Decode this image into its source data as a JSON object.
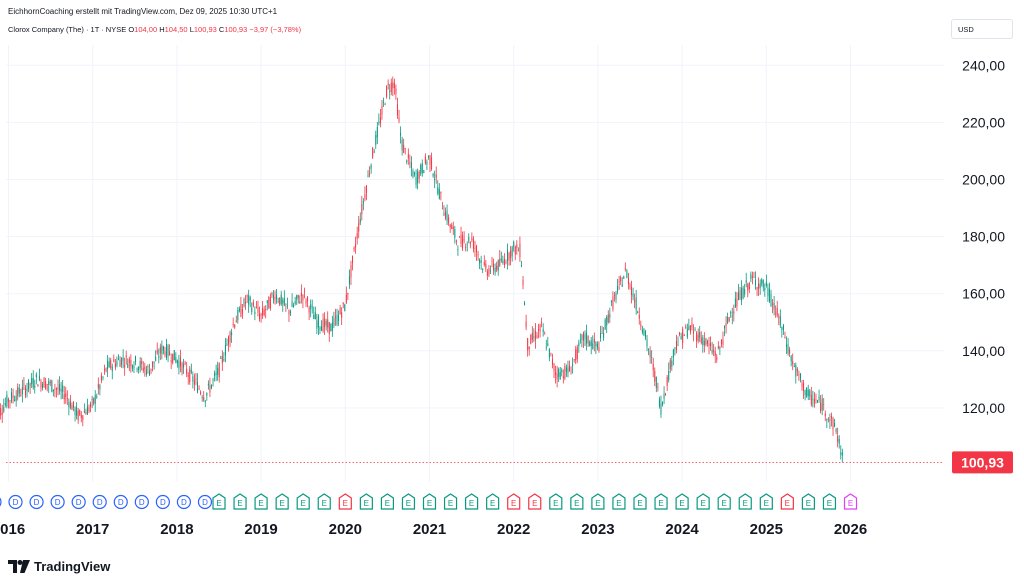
{
  "header": {
    "credit": "EichhornCoaching erstellt mit TradingView.com, Dez 09, 2025 10:30 UTC+1",
    "symbol": "Clorox Company (The) · 1T · NYSE",
    "open_label": "O",
    "open": "104,00",
    "high_label": "H",
    "high": "104,50",
    "low_label": "L",
    "low": "100,93",
    "close_label": "C",
    "close": "100,93",
    "change": "−3,97 (−3,78%)",
    "currency": "USD"
  },
  "brand": {
    "name": "TradingView"
  },
  "colors": {
    "up": "#089981",
    "down": "#f23645",
    "dividend": "#2962ff",
    "earnings_neutral": "#089981",
    "earnings_miss": "#f23645",
    "earnings_upcoming": "#e040fb",
    "grid": "#f0f3fa"
  },
  "chart_data": {
    "type": "candlestick",
    "title": "Clorox Company (The) · 1T · NYSE",
    "ylim": [
      95,
      243
    ],
    "yticks": [
      "120,00",
      "140,00",
      "160,00",
      "180,00",
      "200,00",
      "220,00",
      "240,00"
    ],
    "xticks": [
      "2016",
      "2017",
      "2018",
      "2019",
      "2020",
      "2021",
      "2022",
      "2023",
      "2024",
      "2025",
      "2026"
    ],
    "last_price": 100.93,
    "last_price_label": "100,93",
    "series": [
      {
        "name": "Clorox Company (The)",
        "points": [
          [
            "2015-11",
            116
          ],
          [
            "2016-01",
            123
          ],
          [
            "2016-03",
            126
          ],
          [
            "2016-05",
            130
          ],
          [
            "2016-07",
            128
          ],
          [
            "2016-09",
            125
          ],
          [
            "2016-11",
            117
          ],
          [
            "2017-01",
            121
          ],
          [
            "2017-03",
            134
          ],
          [
            "2017-05",
            137
          ],
          [
            "2017-07",
            136
          ],
          [
            "2017-09",
            133
          ],
          [
            "2017-11",
            141
          ],
          [
            "2018-01",
            137
          ],
          [
            "2018-03",
            131
          ],
          [
            "2018-05",
            124
          ],
          [
            "2018-07",
            133
          ],
          [
            "2018-09",
            149
          ],
          [
            "2018-11",
            158
          ],
          [
            "2019-01",
            152
          ],
          [
            "2019-03",
            160
          ],
          [
            "2019-05",
            154
          ],
          [
            "2019-07",
            160
          ],
          [
            "2019-09",
            150
          ],
          [
            "2019-11",
            148
          ],
          [
            "2020-01",
            156
          ],
          [
            "2020-03",
            185
          ],
          [
            "2020-05",
            210
          ],
          [
            "2020-07",
            232
          ],
          [
            "2020-08",
            234
          ],
          [
            "2020-09",
            213
          ],
          [
            "2020-11",
            200
          ],
          [
            "2021-01",
            208
          ],
          [
            "2021-03",
            190
          ],
          [
            "2021-05",
            178
          ],
          [
            "2021-07",
            179
          ],
          [
            "2021-09",
            168
          ],
          [
            "2021-11",
            170
          ],
          [
            "2022-01",
            176
          ],
          [
            "2022-02",
            175
          ],
          [
            "2022-03",
            142
          ],
          [
            "2022-05",
            148
          ],
          [
            "2022-07",
            132
          ],
          [
            "2022-09",
            133
          ],
          [
            "2022-11",
            145
          ],
          [
            "2023-01",
            141
          ],
          [
            "2023-03",
            156
          ],
          [
            "2023-05",
            168
          ],
          [
            "2023-07",
            152
          ],
          [
            "2023-09",
            133
          ],
          [
            "2023-10",
            120
          ],
          [
            "2023-12",
            142
          ],
          [
            "2024-02",
            148
          ],
          [
            "2024-04",
            144
          ],
          [
            "2024-06",
            138
          ],
          [
            "2024-08",
            154
          ],
          [
            "2024-10",
            162
          ],
          [
            "2024-11",
            165
          ],
          [
            "2025-01",
            162
          ],
          [
            "2025-03",
            150
          ],
          [
            "2025-05",
            134
          ],
          [
            "2025-07",
            124
          ],
          [
            "2025-09",
            121
          ],
          [
            "2025-11",
            112
          ],
          [
            "2025-12",
            101
          ]
        ]
      }
    ],
    "events": [
      [
        "D",
        "2015-11"
      ],
      [
        "D",
        "2016-02"
      ],
      [
        "D",
        "2016-05"
      ],
      [
        "D",
        "2016-08"
      ],
      [
        "D",
        "2016-11"
      ],
      [
        "D",
        "2017-02"
      ],
      [
        "D",
        "2017-05"
      ],
      [
        "D",
        "2017-08"
      ],
      [
        "D",
        "2017-11"
      ],
      [
        "D",
        "2018-02"
      ],
      [
        "D",
        "2018-05"
      ],
      [
        "E",
        "2018-07"
      ],
      [
        "E",
        "2018-10"
      ],
      [
        "E",
        "2019-01"
      ],
      [
        "E",
        "2019-04"
      ],
      [
        "E",
        "2019-07"
      ],
      [
        "E",
        "2019-10"
      ],
      [
        "Em",
        "2020-01"
      ],
      [
        "E",
        "2020-04"
      ],
      [
        "E",
        "2020-07"
      ],
      [
        "E",
        "2020-10"
      ],
      [
        "E",
        "2021-01"
      ],
      [
        "E",
        "2021-04"
      ],
      [
        "E",
        "2021-07"
      ],
      [
        "E",
        "2021-10"
      ],
      [
        "Em",
        "2022-01"
      ],
      [
        "Em",
        "2022-04"
      ],
      [
        "E",
        "2022-07"
      ],
      [
        "E",
        "2022-10"
      ],
      [
        "E",
        "2023-01"
      ],
      [
        "E",
        "2023-04"
      ],
      [
        "E",
        "2023-07"
      ],
      [
        "E",
        "2023-10"
      ],
      [
        "E",
        "2024-01"
      ],
      [
        "E",
        "2024-04"
      ],
      [
        "E",
        "2024-07"
      ],
      [
        "E",
        "2024-10"
      ],
      [
        "E",
        "2025-01"
      ],
      [
        "Em",
        "2025-04"
      ],
      [
        "E",
        "2025-07"
      ],
      [
        "E",
        "2025-10"
      ],
      [
        "Eu",
        "2026-01"
      ]
    ]
  }
}
